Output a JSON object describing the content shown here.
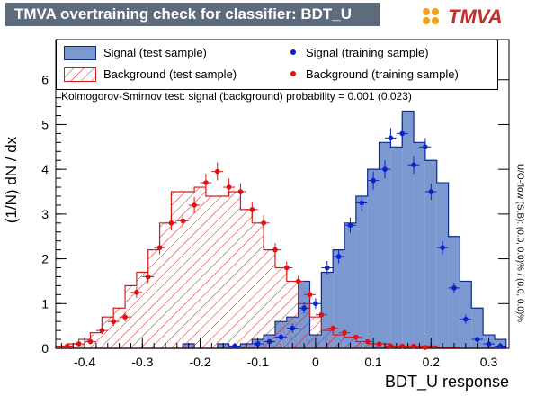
{
  "header": {
    "title": "TMVA overtraining check for classifier: BDT_U"
  },
  "logo": {
    "text_prefix": "",
    "text_main": "TMVA"
  },
  "colors": {
    "signal_fill": "#7b98d0",
    "signal_line": "#0d2a8a",
    "signal_points": "#0a22c9",
    "background_hatch": "#d41b1b",
    "background_points": "#e01010",
    "title_bar": "#5d6b7d"
  },
  "legend": {
    "signal_test": "Signal (test sample)",
    "background_test": "Background (test sample)",
    "signal_train": "Signal (training sample)",
    "background_train": "Background (training sample)"
  },
  "ks_text": "Kolmogorov-Smirnov test: signal (background) probability = 0.001 (0.023)",
  "overflow_note": "U/O-flow (S,B): (0.0, 0.0)% / (0.0, 0.0)%",
  "chart_data": {
    "type": "bar",
    "xlabel": "BDT_U response",
    "ylabel": "(1/N) dN / dx",
    "xlim": [
      -0.45,
      0.335
    ],
    "ylim": [
      0,
      6.9
    ],
    "x_ticks": [
      -0.4,
      -0.3,
      -0.2,
      -0.1,
      0,
      0.1,
      0.2,
      0.3
    ],
    "x_tick_labels": [
      "-0.4",
      "-0.3",
      "-0.2",
      "-0.1",
      "0",
      "0.1",
      "0.2",
      "0.3"
    ],
    "y_ticks": [
      0,
      1,
      2,
      3,
      4,
      5,
      6
    ],
    "y_tick_labels": [
      "0",
      "1",
      "2",
      "3",
      "4",
      "5",
      "6"
    ],
    "bin_edges": [
      -0.45,
      -0.43,
      -0.41,
      -0.39,
      -0.37,
      -0.35,
      -0.33,
      -0.31,
      -0.29,
      -0.27,
      -0.25,
      -0.23,
      -0.21,
      -0.19,
      -0.17,
      -0.15,
      -0.13,
      -0.11,
      -0.09,
      -0.07,
      -0.05,
      -0.03,
      -0.01,
      0.01,
      0.03,
      0.05,
      0.07,
      0.09,
      0.11,
      0.13,
      0.15,
      0.17,
      0.19,
      0.21,
      0.23,
      0.25,
      0.27,
      0.29,
      0.31,
      0.33
    ],
    "series": [
      {
        "name": "Signal (test sample)",
        "style": "filled-histogram",
        "values": [
          0,
          0,
          0,
          0,
          0,
          0,
          0,
          0,
          0,
          0,
          0,
          0.1,
          0,
          0,
          0.1,
          0.05,
          0.1,
          0.2,
          0.3,
          0.6,
          0.7,
          1.5,
          0.3,
          1.7,
          2.2,
          2.8,
          3.4,
          4.0,
          4.6,
          4.5,
          5.3,
          4.6,
          4.2,
          3.7,
          2.5,
          1.5,
          0.9,
          0.3,
          0.2
        ]
      },
      {
        "name": "Background (test sample)",
        "style": "hatched-histogram",
        "values": [
          0.05,
          0.1,
          0.2,
          0.35,
          0.7,
          0.9,
          1.4,
          1.7,
          2.2,
          2.8,
          3.5,
          3.5,
          3.6,
          3.4,
          3.4,
          3.5,
          3.1,
          2.8,
          2.2,
          1.8,
          1.5,
          1.0,
          0.7,
          0.4,
          0.3,
          0.25,
          0.15,
          0.1,
          0.1,
          0.05,
          0.05,
          0.05,
          0.05,
          0.02,
          0.02,
          0,
          0,
          0,
          0
        ]
      },
      {
        "name": "Signal (training sample)",
        "style": "points",
        "x": [
          -0.14,
          -0.1,
          -0.08,
          -0.06,
          -0.04,
          -0.02,
          0.0,
          0.02,
          0.04,
          0.06,
          0.08,
          0.1,
          0.12,
          0.13,
          0.15,
          0.17,
          0.19,
          0.2,
          0.22,
          0.24,
          0.26,
          0.28,
          0.3,
          0.32
        ],
        "y": [
          0.05,
          0.1,
          0.15,
          0.25,
          0.45,
          0.9,
          1.0,
          1.8,
          2.05,
          2.75,
          3.25,
          3.75,
          4.0,
          4.7,
          4.8,
          4.1,
          4.5,
          3.5,
          2.25,
          1.35,
          0.65,
          0.2,
          0.1,
          0.05
        ],
        "err": [
          0.05,
          0.05,
          0.06,
          0.08,
          0.1,
          0.12,
          0.12,
          0.15,
          0.15,
          0.17,
          0.18,
          0.2,
          0.2,
          0.22,
          0.22,
          0.2,
          0.2,
          0.18,
          0.15,
          0.12,
          0.1,
          0.05,
          0.04,
          0.03
        ]
      },
      {
        "name": "Background (training sample)",
        "style": "points",
        "x": [
          -0.43,
          -0.41,
          -0.39,
          -0.37,
          -0.35,
          -0.33,
          -0.31,
          -0.29,
          -0.27,
          -0.25,
          -0.23,
          -0.21,
          -0.19,
          -0.17,
          -0.15,
          -0.13,
          -0.11,
          -0.09,
          -0.07,
          -0.05,
          -0.03,
          -0.01,
          0.01,
          0.03,
          0.05,
          0.07,
          0.09,
          0.11,
          0.13,
          0.15,
          0.17,
          0.19
        ],
        "y": [
          0.05,
          0.1,
          0.15,
          0.4,
          0.6,
          0.7,
          1.25,
          1.6,
          2.25,
          2.8,
          2.85,
          3.2,
          3.7,
          3.95,
          3.6,
          3.5,
          3.1,
          2.8,
          2.2,
          1.8,
          1.5,
          1.2,
          0.75,
          0.45,
          0.35,
          0.25,
          0.15,
          0.1,
          0.05,
          0.05,
          0.05,
          0.02
        ],
        "err": [
          0.03,
          0.04,
          0.05,
          0.08,
          0.1,
          0.1,
          0.12,
          0.14,
          0.15,
          0.17,
          0.17,
          0.18,
          0.2,
          0.2,
          0.19,
          0.19,
          0.18,
          0.17,
          0.15,
          0.14,
          0.12,
          0.11,
          0.09,
          0.07,
          0.06,
          0.05,
          0.04,
          0.03,
          0.02,
          0.02,
          0.02,
          0.01
        ]
      }
    ]
  }
}
